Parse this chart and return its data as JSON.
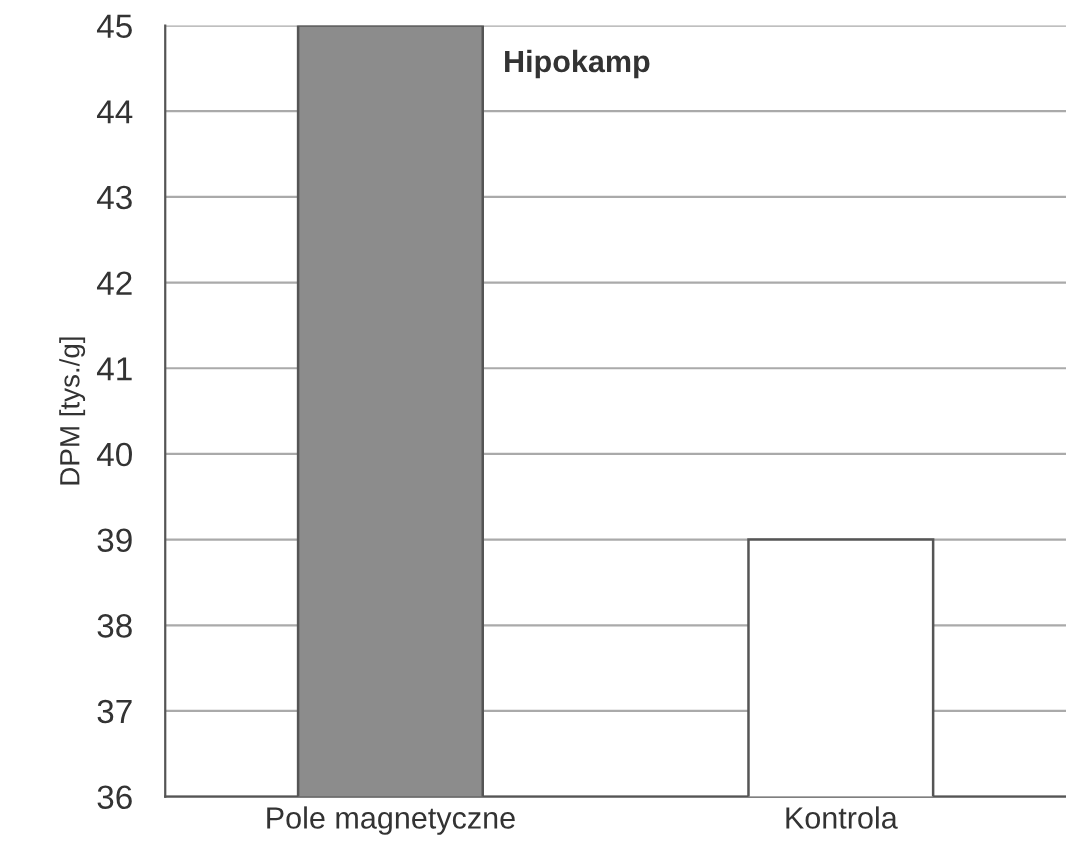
{
  "chart_data": {
    "type": "bar",
    "title": "Hipokamp",
    "ylabel": "DPM [tys./g]",
    "categories": [
      "Pole magnetyczne",
      "Kontrola"
    ],
    "values": [
      45,
      39
    ],
    "colors": [
      "#8c8c8c",
      "#ffffff"
    ],
    "ylim": [
      36,
      45
    ],
    "yticks": [
      36,
      37,
      38,
      39,
      40,
      41,
      42,
      43,
      44,
      45
    ],
    "grid": "y"
  }
}
